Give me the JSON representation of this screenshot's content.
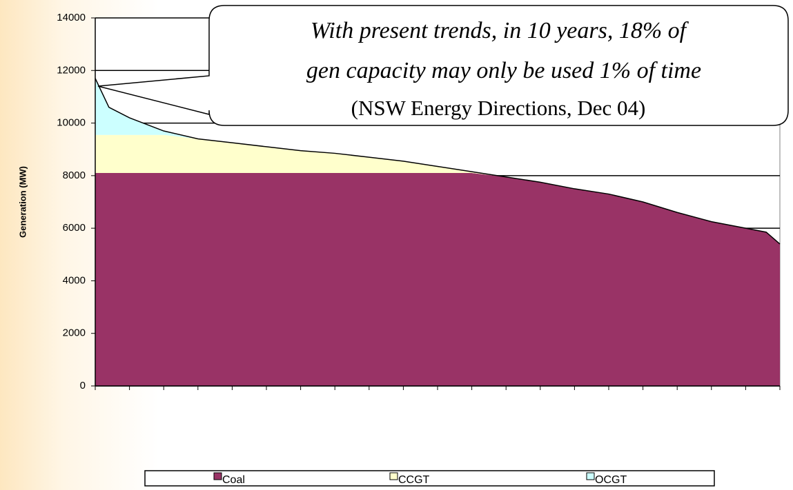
{
  "chart_data": {
    "type": "area",
    "y_label": "Generation (MW)",
    "annotation": [
      "With present trends, in 10 years, 18% of",
      "gen capacity may only be used 1% of time",
      "(NSW Energy Directions, Dec 04)"
    ],
    "x": [
      0,
      2,
      5,
      10,
      15,
      20,
      25,
      30,
      35,
      40,
      45,
      50,
      55,
      60,
      65,
      70,
      75,
      80,
      85,
      90,
      95,
      98,
      100
    ],
    "series": [
      {
        "name": "Coal",
        "color": "#993366",
        "values": [
          8100,
          8100,
          8100,
          8100,
          8100,
          8100,
          8100,
          8100,
          8100,
          8100,
          8100,
          8100,
          8100,
          7950,
          7750,
          7500,
          7300,
          7000,
          6600,
          6250,
          6000,
          5850,
          5400
        ]
      },
      {
        "name": "CCGT",
        "color": "#ffffcc",
        "values": [
          1450,
          1450,
          1450,
          1450,
          1300,
          1150,
          1000,
          850,
          750,
          600,
          450,
          250,
          50,
          0,
          0,
          0,
          0,
          0,
          0,
          0,
          0,
          0,
          0
        ]
      },
      {
        "name": "OCGT",
        "color": "#ccffff",
        "values": [
          2150,
          1050,
          650,
          150,
          0,
          0,
          0,
          0,
          0,
          0,
          0,
          0,
          0,
          0,
          0,
          0,
          0,
          0,
          0,
          0,
          0,
          0,
          0
        ]
      }
    ],
    "xlim": [
      0,
      100
    ],
    "xticks": [
      0,
      5,
      10,
      15,
      20,
      25,
      30,
      35,
      40,
      45,
      50,
      55,
      60,
      65,
      70,
      75,
      80,
      85,
      90,
      95,
      100
    ],
    "ylim": [
      0,
      14000
    ],
    "yticks": [
      0,
      2000,
      4000,
      6000,
      8000,
      10000,
      12000,
      14000
    ],
    "grid": true,
    "legend": "bottom"
  }
}
